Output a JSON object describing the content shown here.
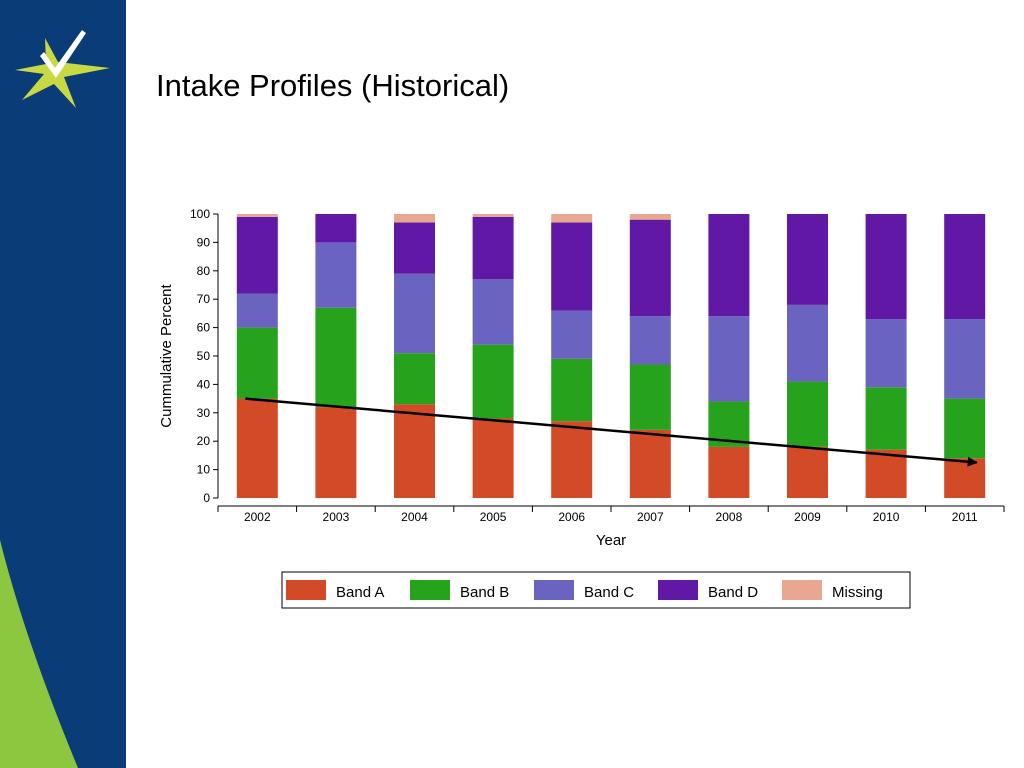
{
  "slide": {
    "title": "Intake Profiles (Historical)"
  },
  "theme": {
    "sidebar_blue": "#0a3c78",
    "sidebar_green": "#8dc63f",
    "logo_star": "#c8d944",
    "logo_check": "#ffffff"
  },
  "chart_data": {
    "type": "bar",
    "stacked": true,
    "xlabel": "Year",
    "ylabel": "Cummulative Percent",
    "ylim": [
      0,
      100
    ],
    "yticks": [
      0,
      10,
      20,
      30,
      40,
      50,
      60,
      70,
      80,
      90,
      100
    ],
    "categories": [
      "2002",
      "2003",
      "2004",
      "2005",
      "2006",
      "2007",
      "2008",
      "2009",
      "2010",
      "2011"
    ],
    "series": [
      {
        "name": "Band A",
        "color": "#d24a26",
        "values": [
          35,
          32,
          33,
          28,
          27,
          24,
          18,
          18,
          17,
          14
        ]
      },
      {
        "name": "Band B",
        "color": "#27a21c",
        "values": [
          25,
          35,
          18,
          26,
          22,
          23,
          16,
          23,
          22,
          21
        ]
      },
      {
        "name": "Band C",
        "color": "#6a64c0",
        "values": [
          12,
          23,
          28,
          23,
          17,
          17,
          30,
          27,
          24,
          28
        ]
      },
      {
        "name": "Band D",
        "color": "#6119a5",
        "values": [
          27,
          10,
          18,
          22,
          31,
          34,
          36,
          32,
          37,
          37
        ]
      },
      {
        "name": "Missing",
        "color": "#e8a890",
        "values": [
          1,
          0,
          3,
          1,
          3,
          2,
          0,
          0,
          0,
          0
        ]
      }
    ],
    "legend_position": "bottom",
    "grid": false,
    "annotations": [
      {
        "type": "arrow",
        "from": {
          "x": "2002",
          "y": 35
        },
        "to": {
          "x": "2011",
          "y": 12.5
        },
        "color": "#000000"
      }
    ]
  }
}
